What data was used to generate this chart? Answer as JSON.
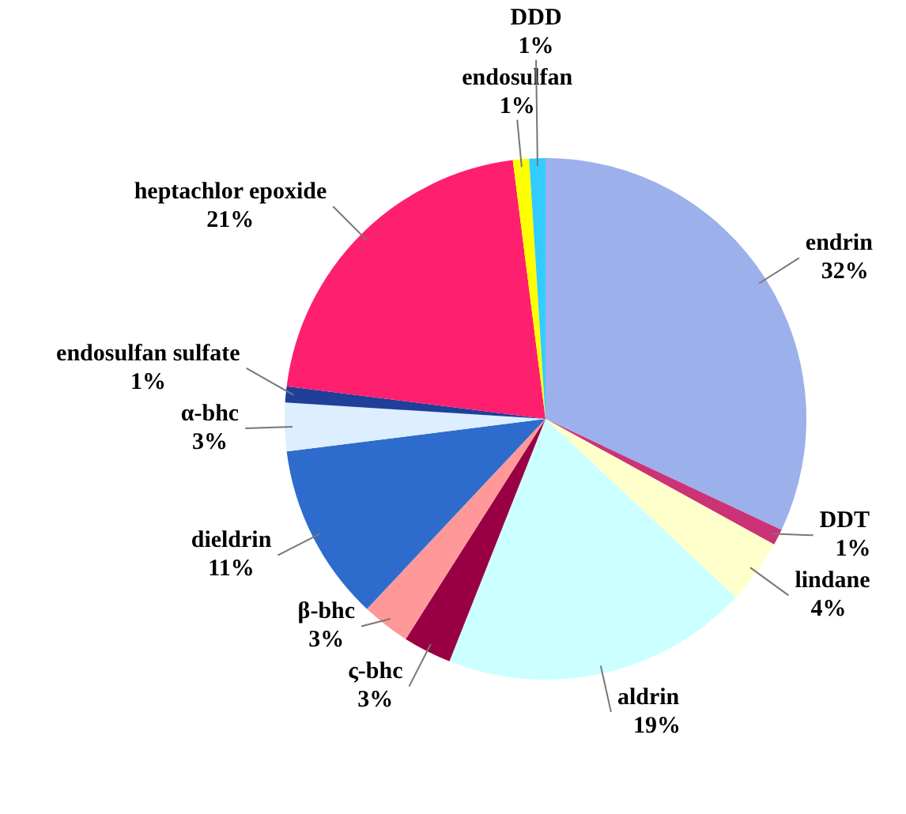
{
  "chart_data": {
    "type": "pie",
    "categories": [
      "endrin",
      "DDT",
      "lindane",
      "aldrin",
      "ς-bhc",
      "β-bhc",
      "dieldrin",
      "α-bhc",
      "endosulfan sulfate",
      "heptachlor epoxide",
      "endosulfan",
      "DDD"
    ],
    "values": [
      32,
      1,
      4,
      19,
      3,
      3,
      11,
      3,
      1,
      21,
      1,
      1
    ],
    "value_labels": [
      "32%",
      "1%",
      "4%",
      "19%",
      "3%",
      "3%",
      "11%",
      "3%",
      "1%",
      "21%",
      "1%",
      "1%"
    ],
    "colors": [
      "#9cb0ec",
      "#cc3377",
      "#ffffcc",
      "#ccffff",
      "#990044",
      "#ff9999",
      "#2d6ccc",
      "#ddeeff",
      "#1f3f99",
      "#ff1f6f",
      "#ffff00",
      "#33ccff"
    ],
    "legend": false
  }
}
